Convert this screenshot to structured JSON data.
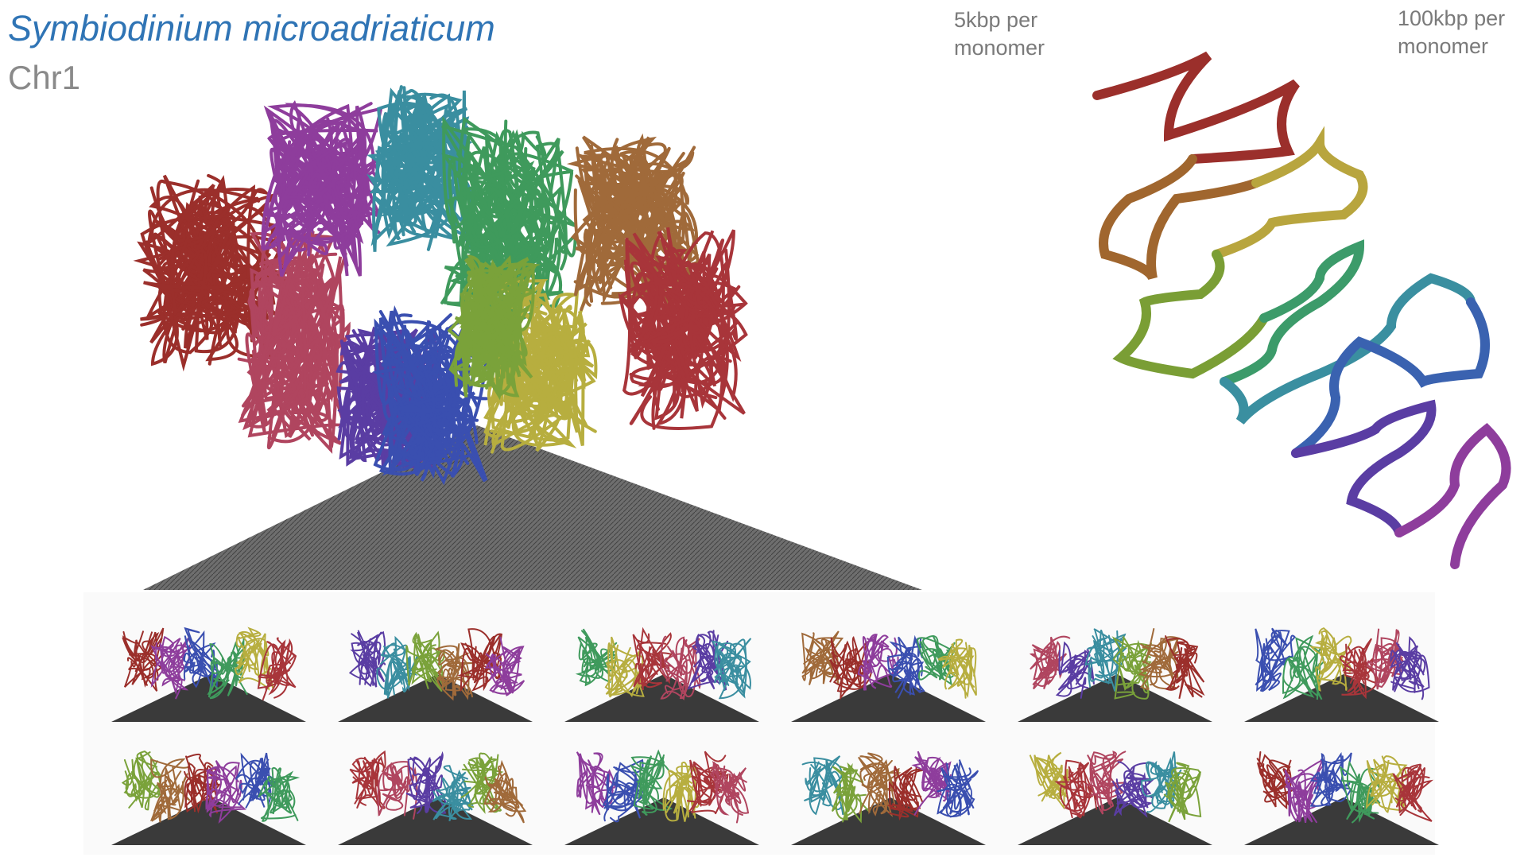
{
  "title": "Symbiodinium microadriaticum",
  "subtitle": "Chr1",
  "labels": {
    "left_resolution": "5kbp per\nmonomer",
    "right_resolution": "100kbp per\nmonomer"
  },
  "colors": {
    "title": "#2f74b5",
    "subtitle": "#8a8a8a",
    "domain_palette": [
      "#9b2f2b",
      "#b0455f",
      "#8e3d9c",
      "#5a3da3",
      "#3a4fb0",
      "#3a8ea0",
      "#3f9a5c",
      "#7aa23a",
      "#b7ae3f",
      "#a06a3a",
      "#a8353a"
    ]
  },
  "thumbnail_count": 12,
  "icons": [
    "hic-contact-map-triangle",
    "chromatin-polymer-model"
  ]
}
